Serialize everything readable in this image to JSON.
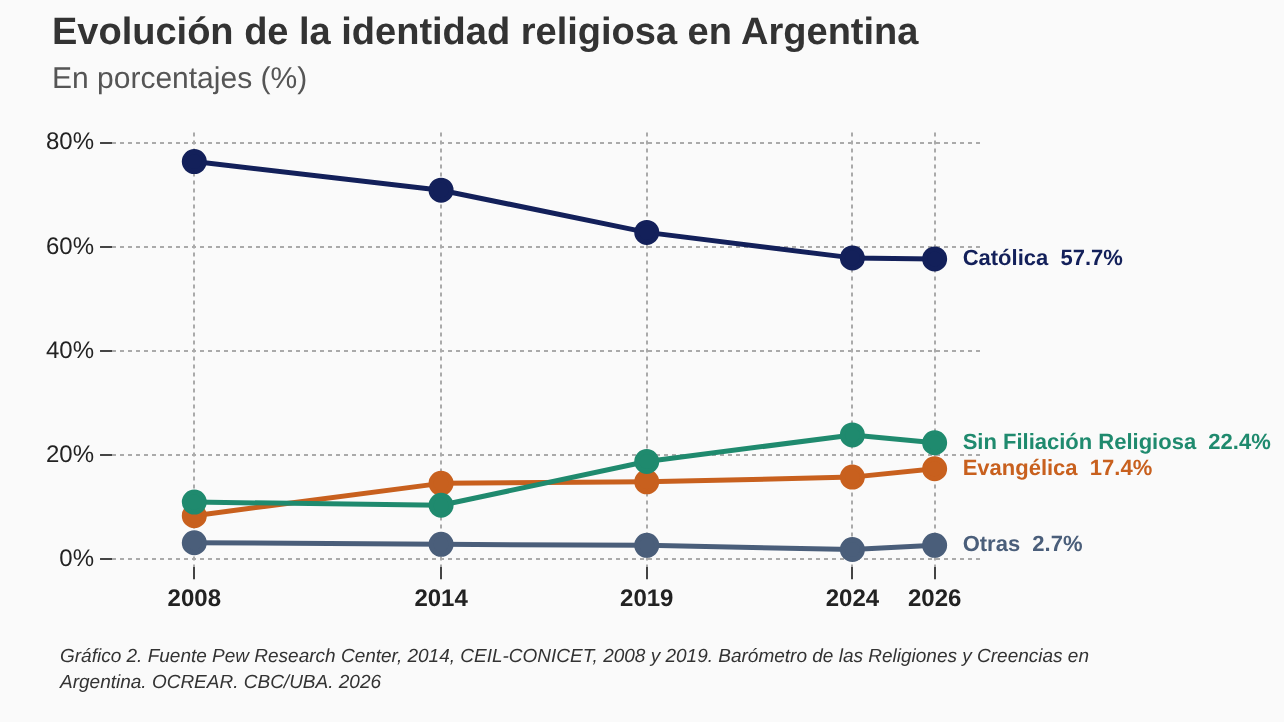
{
  "chart_data": {
    "type": "line",
    "title": "Evolución de la identidad religiosa en Argentina",
    "subtitle": "En porcentajes (%)",
    "annotations": [
      "Gráfico 2. Fuente Pew Research Center, 2014, CEIL-CONICET, 2008 y 2019. Barómetro de las Religiones y Creencias en Argentina. OCREAR. CBC/UBA. 2026"
    ],
    "x": [
      2008,
      2014,
      2019,
      2024,
      2026
    ],
    "xlim": [
      2006,
      2027.2
    ],
    "xticks": [
      2008,
      2014,
      2019,
      2024,
      2026
    ],
    "ylim": [
      -1.5,
      82
    ],
    "yticks": [
      {
        "value": 0,
        "label": "0%"
      },
      {
        "value": 20,
        "label": "20%"
      },
      {
        "value": 40,
        "label": "40%"
      },
      {
        "value": 60,
        "label": "60%"
      },
      {
        "value": 80,
        "label": "80%"
      }
    ],
    "grid": true,
    "marker": "circle",
    "line_style": "solid",
    "series": [
      {
        "name": "Católica",
        "color": "#13205a",
        "values": [
          76.4,
          70.9,
          62.8,
          57.9,
          57.7
        ],
        "value_labels": [
          null,
          null,
          null,
          null,
          "57.7%"
        ]
      },
      {
        "name": "Sin Filiación Religiosa",
        "color": "#1f8a6e",
        "values": [
          11.0,
          10.4,
          18.8,
          23.9,
          22.4
        ],
        "value_labels": [
          null,
          null,
          null,
          null,
          "22.4%"
        ]
      },
      {
        "name": "Evangélica",
        "color": "#c8601e",
        "values": [
          8.4,
          14.6,
          14.9,
          15.8,
          17.4
        ],
        "value_labels": [
          null,
          null,
          null,
          null,
          "17.4%"
        ]
      },
      {
        "name": "Otras",
        "color": "#4a5e7a",
        "values": [
          3.2,
          2.9,
          2.7,
          1.9,
          2.7
        ],
        "value_labels": [
          null,
          null,
          null,
          null,
          "2.7%"
        ]
      }
    ]
  }
}
